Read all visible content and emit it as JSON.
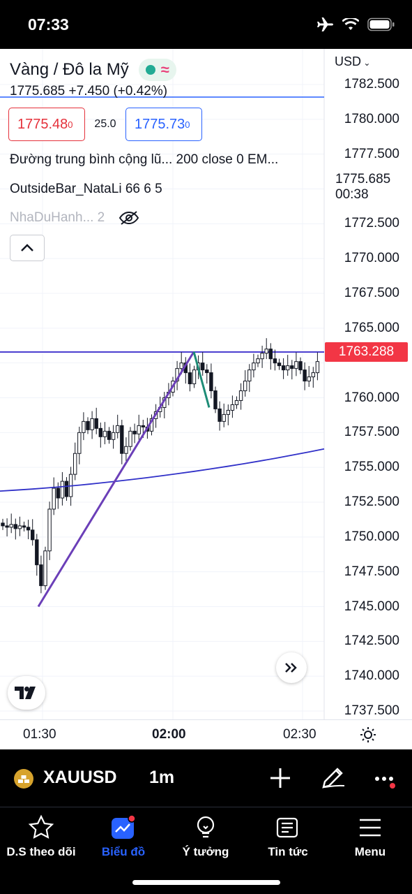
{
  "status": {
    "time": "07:33"
  },
  "header": {
    "symbol_name": "Vàng / Đô la Mỹ",
    "quote": "1775.685 +7.450 (+0.42%)",
    "sell_price": "1775.48",
    "sell_price_sup": "0",
    "spread": "25.0",
    "buy_price": "1775.73",
    "buy_price_sup": "0",
    "indicator1": "Đường trung bình cộng lũ...   200 close 0 EM...",
    "indicator2": "OutsideBar_NataLi 66 6 5",
    "indicator3": "NhaDuHanh...   2",
    "pill_wave": "≈"
  },
  "price_axis": {
    "currency": "USD",
    "labels": [
      "1782.500",
      "1780.000",
      "1777.500",
      "1775.685",
      "1772.500",
      "1770.000",
      "1767.500",
      "1765.000",
      "1763.288",
      "1760.000",
      "1757.500",
      "1755.000",
      "1752.500",
      "1750.000",
      "1747.500",
      "1745.000",
      "1742.500",
      "1740.000",
      "1737.500"
    ],
    "current_price": "1775.685",
    "countdown": "00:38",
    "tag_price": "1763.288"
  },
  "time_axis": {
    "labels": [
      "01:30",
      "02:00",
      "02:30"
    ]
  },
  "toolbar": {
    "symbol": "XAUUSD",
    "interval": "1m"
  },
  "tabs": [
    {
      "label": "D.S theo dõi",
      "icon": "star-icon"
    },
    {
      "label": "Biểu đồ",
      "icon": "chart-icon"
    },
    {
      "label": "Ý tưởng",
      "icon": "lightbulb-icon"
    },
    {
      "label": "Tin tức",
      "icon": "news-icon"
    },
    {
      "label": "Menu",
      "icon": "menu-icon"
    }
  ],
  "colors": {
    "up": "#131722",
    "down": "#131722",
    "accent": "#2962ff",
    "sell": "#e5313b",
    "line": "#4b3fd0",
    "trend": "#6b3fb8",
    "price_tag": "#f23645"
  },
  "chart_data": {
    "type": "candlestick",
    "symbol": "XAUUSD",
    "interval": "1m",
    "ylim": [
      1737.5,
      1783.5
    ],
    "y_ticks": [
      1782.5,
      1780.0,
      1777.5,
      1775.685,
      1772.5,
      1770.0,
      1767.5,
      1765.0,
      1763.288,
      1760.0,
      1757.5,
      1755.0,
      1752.5,
      1750.0,
      1747.5,
      1745.0,
      1742.5,
      1740.0,
      1737.5
    ],
    "x_ticks": [
      "01:30",
      "02:00",
      "02:30"
    ],
    "horizontal_line": 1763.288,
    "candles_close": [
      1750.8,
      1750.7,
      1750.9,
      1750.6,
      1750.8,
      1750.7,
      1750.5,
      1749.8,
      1748.0,
      1746.5,
      1749.0,
      1752.0,
      1753.5,
      1752.8,
      1754.0,
      1752.9,
      1754.5,
      1756.0,
      1757.5,
      1758.3,
      1757.7,
      1758.5,
      1757.8,
      1757.2,
      1757.6,
      1757.0,
      1757.5,
      1758.0,
      1756.0,
      1756.5,
      1757.6,
      1757.4,
      1758.0,
      1757.9,
      1757.6,
      1758.5,
      1759.0,
      1759.3,
      1760.0,
      1760.4,
      1761.2,
      1762.1,
      1762.5,
      1761.8,
      1761.0,
      1762.0,
      1762.5,
      1762.0,
      1761.8,
      1760.5,
      1759.2,
      1758.3,
      1758.8,
      1759.1,
      1759.5,
      1759.8,
      1760.5,
      1761.2,
      1762.0,
      1762.5,
      1762.8,
      1763.2,
      1763.5,
      1762.8,
      1762.5,
      1762.3,
      1762.0,
      1762.3,
      1762.1,
      1762.6,
      1762.0,
      1761.2,
      1761.5,
      1761.8,
      1762.6
    ]
  }
}
